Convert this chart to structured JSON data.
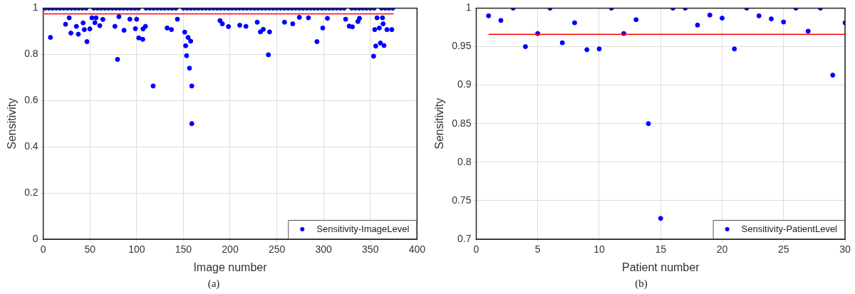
{
  "chart_data": [
    {
      "type": "scatter",
      "xlabel": "Image number",
      "ylabel": "Sensitivity",
      "xlim": [
        0,
        400
      ],
      "xticks": [
        0,
        50,
        100,
        150,
        200,
        250,
        300,
        350,
        400
      ],
      "ylim": [
        0,
        1
      ],
      "yticks": [
        0,
        0.2,
        0.4,
        0.6,
        0.8,
        1
      ],
      "grid": true,
      "legend": "bottom right",
      "marker": "circle",
      "annotations": [
        "(a)"
      ],
      "series": [
        {
          "name": "Sensitivity-ImageLevel",
          "color": "#0000ff",
          "x": [
            2,
            6,
            10,
            14,
            18,
            22,
            26,
            30,
            34,
            38,
            42,
            46,
            54,
            58,
            62,
            66,
            70,
            74,
            78,
            82,
            86,
            90,
            94,
            98,
            102,
            110,
            114,
            118,
            122,
            126,
            130,
            134,
            138,
            142,
            150,
            154,
            158,
            162,
            166,
            170,
            174,
            178,
            182,
            186,
            190,
            194,
            198,
            202,
            206,
            210,
            214,
            218,
            222,
            226,
            230,
            234,
            238,
            242,
            246,
            250,
            254,
            258,
            262,
            266,
            270,
            274,
            278,
            282,
            286,
            290,
            294,
            298,
            302,
            306,
            310,
            314,
            318,
            322,
            330,
            334,
            338,
            342,
            346,
            350,
            354,
            362,
            366,
            370,
            374,
            7.7,
            27.8,
            23.9,
            29.6,
            35.5,
            37.6,
            42.7,
            44,
            46.8,
            49.9,
            52.2,
            55.3,
            56.5,
            60.5,
            63.8,
            76.7,
            79.5,
            81,
            86.5,
            92.7,
            98.6,
            100,
            102.2,
            106.5,
            106.8,
            109.4,
            117.6,
            132.6,
            137.2,
            143.6,
            151.4,
            155,
            157.8,
            152.4,
            153.4,
            156.5,
            159,
            159,
            189.2,
            191.7,
            198.2,
            210.3,
            216.9,
            229,
            232.4,
            235.5,
            242.2,
            240.9,
            258.2,
            267,
            274.1,
            283.8,
            292.9,
            299.1,
            304.1,
            323.6,
            327.4,
            330.8,
            336.7,
            338.4,
            354.7,
            355.8,
            353.5,
            359.6,
            360.8,
            364.7,
            363.7,
            367.8,
            373,
            357.2,
            363
          ],
          "values": [
            1,
            1,
            1,
            1,
            1,
            1,
            1,
            1,
            1,
            1,
            1,
            1,
            1,
            1,
            1,
            1,
            1,
            1,
            1,
            1,
            1,
            1,
            1,
            1,
            1,
            1,
            1,
            1,
            1,
            1,
            1,
            1,
            1,
            1,
            1,
            1,
            1,
            1,
            1,
            1,
            1,
            1,
            1,
            1,
            1,
            1,
            1,
            1,
            1,
            1,
            1,
            1,
            1,
            1,
            1,
            1,
            1,
            1,
            1,
            1,
            1,
            1,
            1,
            1,
            1,
            1,
            1,
            1,
            1,
            1,
            1,
            1,
            1,
            1,
            1,
            1,
            1,
            1,
            1,
            1,
            1,
            1,
            1,
            1,
            1,
            1,
            1,
            1,
            1,
            0.873,
            0.958,
            0.93,
            0.892,
            0.921,
            0.887,
            0.936,
            0.907,
            0.855,
            0.91,
            0.958,
            0.937,
            0.958,
            0.924,
            0.951,
            0.921,
            0.778,
            0.963,
            0.904,
            0.952,
            0.911,
            0.952,
            0.871,
            0.865,
            0.91,
            0.921,
            0.663,
            0.914,
            0.907,
            0.952,
            0.896,
            0.873,
            0.857,
            0.837,
            0.794,
            0.74,
            0.663,
            0.5,
            0.946,
            0.932,
            0.92,
            0.926,
            0.921,
            0.939,
            0.897,
            0.908,
            0.897,
            0.798,
            0.939,
            0.932,
            0.96,
            0.958,
            0.855,
            0.914,
            0.956,
            0.952,
            0.922,
            0.919,
            0.942,
            0.956,
            0.907,
            0.836,
            0.792,
            0.914,
            0.849,
            0.838,
            0.932,
            0.907,
            0.907,
            0.958,
            0.958
          ]
        },
        {
          "type": "line",
          "marker": "none",
          "color": "#ff0000",
          "x": [
            1,
            375
          ],
          "values": [
            0.975,
            0.975
          ]
        }
      ]
    },
    {
      "type": "scatter",
      "xlabel": "Patient number",
      "ylabel": "Sensitivity",
      "xlim": [
        0,
        30
      ],
      "xticks": [
        0,
        5,
        10,
        15,
        20,
        25,
        30
      ],
      "ylim": [
        0.7,
        1
      ],
      "yticks": [
        0.7,
        0.75,
        0.8,
        0.85,
        0.9,
        0.95,
        1
      ],
      "grid": true,
      "legend": "bottom right",
      "marker": "circle",
      "annotations": [
        "(b)"
      ],
      "series": [
        {
          "name": "Sensitivity-PatientLevel",
          "color": "#0000ff",
          "x": [
            1,
            2,
            3,
            4,
            5,
            6,
            7,
            8,
            9,
            10,
            11,
            12,
            13,
            14,
            15,
            16,
            17,
            18,
            19,
            20,
            21,
            22,
            23,
            24,
            25,
            26,
            27,
            28,
            29,
            30
          ],
          "values": [
            0.99,
            0.984,
            1,
            0.95,
            0.967,
            1,
            0.955,
            0.981,
            0.946,
            0.947,
            1,
            0.967,
            0.985,
            0.85,
            0.727,
            1,
            1,
            0.978,
            0.991,
            0.987,
            0.947,
            1,
            0.99,
            0.986,
            0.982,
            1,
            0.97,
            1,
            0.913,
            0.981
          ]
        },
        {
          "type": "line",
          "marker": "none",
          "color": "#ff0000",
          "x": [
            1,
            30
          ],
          "values": [
            0.966,
            0.966
          ]
        }
      ]
    }
  ]
}
